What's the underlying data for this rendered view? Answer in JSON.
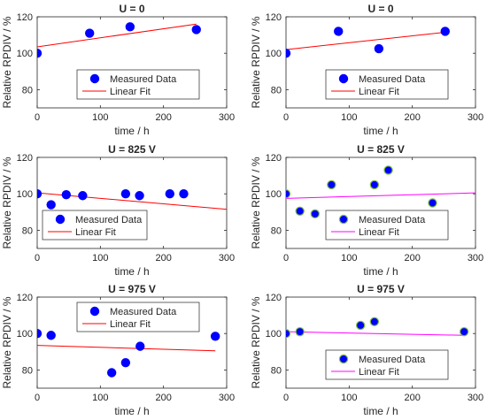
{
  "chart_data": [
    {
      "type": "scatter",
      "title": "U = 0",
      "xlabel": "time / h",
      "ylabel": "Relative RPDIV / %",
      "xlim": [
        0,
        300
      ],
      "ylim": [
        70,
        120
      ],
      "xticks": [
        "0",
        "100",
        "200",
        "300"
      ],
      "yticks": [
        "80",
        "100",
        "120"
      ],
      "legend": "bottom-center",
      "fit_color": "#ff0000",
      "marker_edge": "#0000ff",
      "series": [
        {
          "name": "Measured Data",
          "x": [
            0,
            83,
            147,
            252
          ],
          "y": [
            100,
            111,
            114.5,
            113
          ]
        },
        {
          "name": "Linear Fit",
          "x": [
            0,
            252
          ],
          "y": [
            103.5,
            116
          ]
        }
      ]
    },
    {
      "type": "scatter",
      "title": "U = 0",
      "xlabel": "time / h",
      "ylabel": "Relative RPDIV / %",
      "xlim": [
        0,
        300
      ],
      "ylim": [
        70,
        120
      ],
      "xticks": [
        "0",
        "100",
        "200",
        "300"
      ],
      "yticks": [
        "80",
        "100",
        "120"
      ],
      "legend": "bottom-center",
      "fit_color": "#ff0000",
      "marker_edge": "#0000ff",
      "series": [
        {
          "name": "Measured Data",
          "x": [
            0,
            83,
            147,
            252
          ],
          "y": [
            100,
            112,
            102.5,
            112
          ]
        },
        {
          "name": "Linear Fit",
          "x": [
            0,
            252
          ],
          "y": [
            102,
            111.5
          ]
        }
      ]
    },
    {
      "type": "scatter",
      "title": "U = 825 V",
      "xlabel": "time / h",
      "ylabel": "Relative RPDIV / %",
      "xlim": [
        0,
        300
      ],
      "ylim": [
        70,
        120
      ],
      "xticks": [
        "0",
        "100",
        "200",
        "300"
      ],
      "yticks": [
        "80",
        "100",
        "120"
      ],
      "legend": "bottom-left",
      "fit_color": "#ff0000",
      "marker_edge": "#0000ff",
      "series": [
        {
          "name": "Measured Data",
          "x": [
            0,
            22,
            46,
            72,
            140,
            162,
            210,
            232
          ],
          "y": [
            100,
            94,
            99.5,
            99,
            100,
            99,
            100,
            100
          ]
        },
        {
          "name": "Linear Fit",
          "x": [
            0,
            300
          ],
          "y": [
            100.5,
            91.5
          ]
        }
      ]
    },
    {
      "type": "scatter",
      "title": "U = 825 V",
      "xlabel": "time / h",
      "ylabel": "Relative RPDIV / %",
      "xlim": [
        0,
        300
      ],
      "ylim": [
        70,
        120
      ],
      "xticks": [
        "0",
        "100",
        "200",
        "300"
      ],
      "yticks": [
        "80",
        "100",
        "120"
      ],
      "legend": "bottom-center",
      "fit_color": "#ff00ff",
      "marker_edge": "#7fbf3f",
      "series": [
        {
          "name": "Measured Data",
          "x": [
            0,
            22,
            46,
            72,
            140,
            162,
            232
          ],
          "y": [
            100,
            90.5,
            89,
            105,
            105,
            113,
            95
          ]
        },
        {
          "name": "Linear Fit",
          "x": [
            0,
            300
          ],
          "y": [
            97.5,
            100.5
          ]
        }
      ]
    },
    {
      "type": "scatter",
      "title": "U = 975 V",
      "xlabel": "time / h",
      "ylabel": "Relative RPDIV / %",
      "xlim": [
        0,
        300
      ],
      "ylim": [
        70,
        120
      ],
      "xticks": [
        "0",
        "100",
        "200",
        "300"
      ],
      "yticks": [
        "80",
        "100",
        "120"
      ],
      "legend": "top-center",
      "fit_color": "#ff0000",
      "marker_edge": "#0000ff",
      "series": [
        {
          "name": "Measured Data",
          "x": [
            0,
            22,
            118,
            140,
            163,
            282
          ],
          "y": [
            100,
            99,
            78.5,
            84,
            93,
            98.5
          ]
        },
        {
          "name": "Linear Fit",
          "x": [
            0,
            282
          ],
          "y": [
            93.5,
            90.5
          ]
        }
      ]
    },
    {
      "type": "scatter",
      "title": "U = 975 V",
      "xlabel": "time / h",
      "ylabel": "Relative RPDIV / %",
      "xlim": [
        0,
        300
      ],
      "ylim": [
        70,
        120
      ],
      "xticks": [
        "0",
        "100",
        "200",
        "300"
      ],
      "yticks": [
        "80",
        "100",
        "120"
      ],
      "legend": "bottom-center",
      "fit_color": "#ff00ff",
      "marker_edge": "#7fbf3f",
      "series": [
        {
          "name": "Measured Data",
          "x": [
            0,
            22,
            118,
            140,
            282
          ],
          "y": [
            100,
            101,
            104.5,
            106.5,
            101
          ]
        },
        {
          "name": "Linear Fit",
          "x": [
            0,
            282
          ],
          "y": [
            101,
            99
          ]
        }
      ]
    }
  ]
}
